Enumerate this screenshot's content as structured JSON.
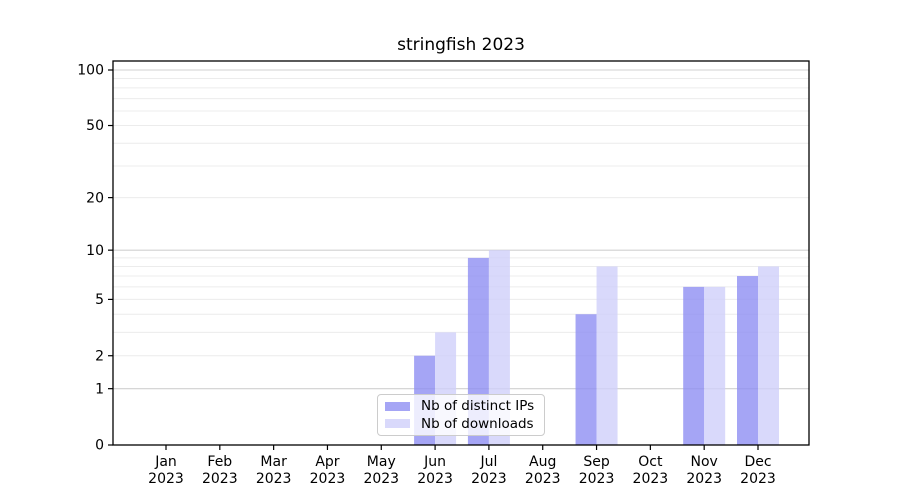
{
  "chart_data": {
    "type": "bar",
    "title": "stringfish 2023",
    "categories": [
      "Jan",
      "Feb",
      "Mar",
      "Apr",
      "May",
      "Jun",
      "Jul",
      "Aug",
      "Sep",
      "Oct",
      "Nov",
      "Dec"
    ],
    "category_year_label": "2023",
    "series": [
      {
        "name": "Nb of distinct IPs",
        "color": "#8e8ef3",
        "values": [
          0,
          0,
          0,
          0,
          0,
          2,
          9,
          0,
          4,
          0,
          6,
          7
        ]
      },
      {
        "name": "Nb of downloads",
        "color": "#cfcffa",
        "values": [
          0,
          0,
          0,
          0,
          0,
          3,
          10,
          0,
          8,
          0,
          6,
          8
        ]
      }
    ],
    "bar_alpha": 0.8,
    "y_axis": {
      "scale": "log1p",
      "tick_labels": [
        0,
        1,
        2,
        5,
        10,
        20,
        50,
        100
      ],
      "range_max": 112
    },
    "x_axis": {
      "tick_labels_two_line": true
    },
    "grid": {
      "major_lines": [
        1,
        10,
        100
      ],
      "minor_lines": [
        2,
        3,
        4,
        5,
        6,
        7,
        8,
        9,
        20,
        30,
        40,
        50,
        60,
        70,
        80,
        90
      ],
      "major_color": "#d0d0d0",
      "minor_color": "#ececec"
    },
    "legend": {
      "position": "lower center"
    },
    "colors": {
      "axis": "#000000",
      "background": "#ffffff",
      "text": "#000000"
    }
  }
}
